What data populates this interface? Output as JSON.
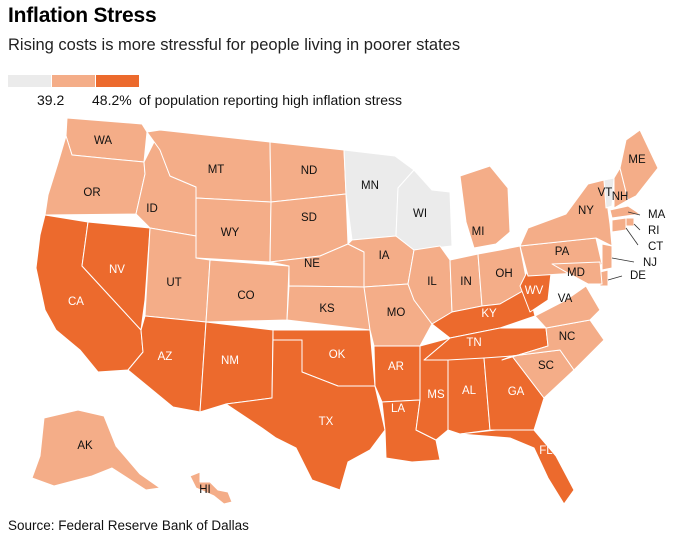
{
  "title": "Inflation Stress",
  "subtitle": "Rising costs is more stressful for people living in poorer states",
  "legend": {
    "min_label": "39.2",
    "max_label": "48.2%",
    "description": "of population reporting high inflation stress",
    "bins": [
      {
        "name": "low",
        "color": "#ebebeb"
      },
      {
        "name": "mid",
        "color": "#f4ad88"
      },
      {
        "name": "high",
        "color": "#ec6a2d"
      }
    ]
  },
  "source": "Source: Federal Reserve Bank of Dallas",
  "map": {
    "states": [
      {
        "code": "WA",
        "bin": "mid"
      },
      {
        "code": "OR",
        "bin": "mid"
      },
      {
        "code": "CA",
        "bin": "high"
      },
      {
        "code": "NV",
        "bin": "high"
      },
      {
        "code": "ID",
        "bin": "mid"
      },
      {
        "code": "MT",
        "bin": "mid"
      },
      {
        "code": "WY",
        "bin": "mid"
      },
      {
        "code": "UT",
        "bin": "mid"
      },
      {
        "code": "AZ",
        "bin": "high"
      },
      {
        "code": "CO",
        "bin": "mid"
      },
      {
        "code": "NM",
        "bin": "high"
      },
      {
        "code": "ND",
        "bin": "mid"
      },
      {
        "code": "SD",
        "bin": "mid"
      },
      {
        "code": "NE",
        "bin": "mid"
      },
      {
        "code": "KS",
        "bin": "mid"
      },
      {
        "code": "OK",
        "bin": "high"
      },
      {
        "code": "TX",
        "bin": "high"
      },
      {
        "code": "MN",
        "bin": "low"
      },
      {
        "code": "IA",
        "bin": "mid"
      },
      {
        "code": "MO",
        "bin": "mid"
      },
      {
        "code": "AR",
        "bin": "high"
      },
      {
        "code": "LA",
        "bin": "high"
      },
      {
        "code": "WI",
        "bin": "low"
      },
      {
        "code": "IL",
        "bin": "mid"
      },
      {
        "code": "MI",
        "bin": "mid"
      },
      {
        "code": "IN",
        "bin": "mid"
      },
      {
        "code": "OH",
        "bin": "mid"
      },
      {
        "code": "KY",
        "bin": "high"
      },
      {
        "code": "TN",
        "bin": "high"
      },
      {
        "code": "MS",
        "bin": "high"
      },
      {
        "code": "AL",
        "bin": "high"
      },
      {
        "code": "GA",
        "bin": "high"
      },
      {
        "code": "FL",
        "bin": "high"
      },
      {
        "code": "SC",
        "bin": "mid"
      },
      {
        "code": "NC",
        "bin": "mid"
      },
      {
        "code": "VA",
        "bin": "mid"
      },
      {
        "code": "WV",
        "bin": "high"
      },
      {
        "code": "PA",
        "bin": "mid"
      },
      {
        "code": "NY",
        "bin": "mid"
      },
      {
        "code": "VT",
        "bin": "low"
      },
      {
        "code": "NH",
        "bin": "mid"
      },
      {
        "code": "ME",
        "bin": "mid"
      },
      {
        "code": "MA",
        "bin": "mid"
      },
      {
        "code": "RI",
        "bin": "mid"
      },
      {
        "code": "CT",
        "bin": "mid"
      },
      {
        "code": "NJ",
        "bin": "mid"
      },
      {
        "code": "DE",
        "bin": "mid"
      },
      {
        "code": "MD",
        "bin": "mid"
      },
      {
        "code": "AK",
        "bin": "mid"
      },
      {
        "code": "HI",
        "bin": "mid"
      }
    ]
  }
}
